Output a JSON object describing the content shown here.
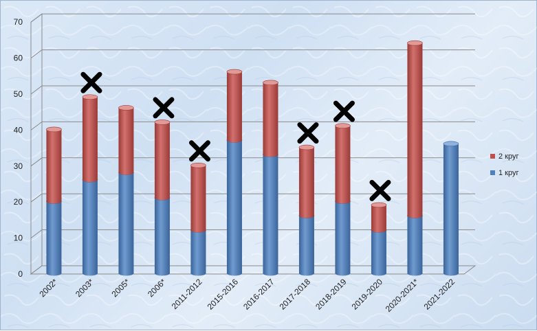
{
  "chart_data": {
    "type": "bar",
    "stacked": true,
    "three_d": true,
    "categories": [
      "2002*",
      "2003*",
      "2005*",
      "2006*",
      "2011-2012",
      "2015-2016",
      "2016-2017",
      "2017-2018",
      "2018-2019",
      "2019-2020",
      "2020-2021*",
      "2021-2022"
    ],
    "series": [
      {
        "name": "1 круг",
        "color": "#4f81bd",
        "values": [
          20,
          26,
          28,
          21,
          12,
          37,
          33,
          16,
          20,
          12,
          16,
          36
        ]
      },
      {
        "name": "2 круг",
        "color": "#c0504d",
        "values": [
          20,
          23,
          18,
          21,
          18,
          19,
          20,
          19,
          21,
          7,
          48,
          0
        ]
      }
    ],
    "cross_marks": [
      "2003*",
      "2006*",
      "2011-2012",
      "2017-2018",
      "2018-2019",
      "2019-2020"
    ],
    "ylim": [
      0,
      70
    ],
    "yticks": [
      0,
      10,
      20,
      30,
      40,
      50,
      60,
      70
    ],
    "grid": true,
    "legend_position": "right",
    "title": "",
    "xlabel": "",
    "ylabel": ""
  }
}
